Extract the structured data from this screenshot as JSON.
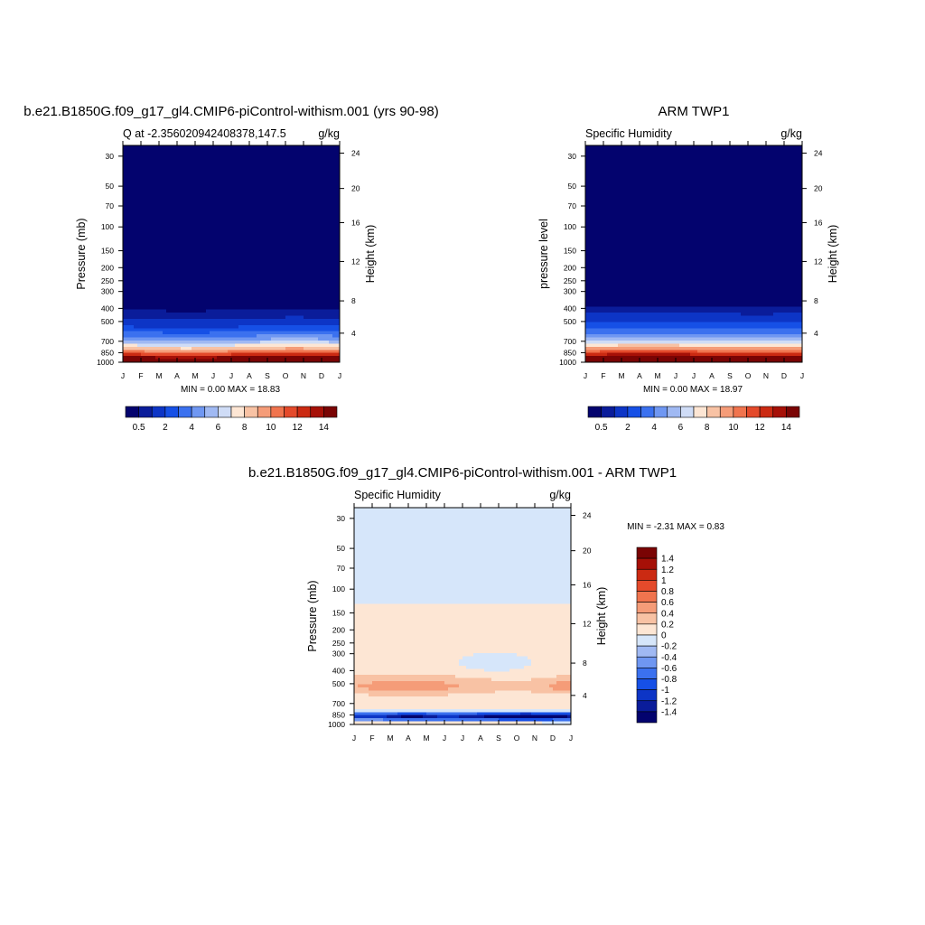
{
  "chart_data": [
    {
      "type": "heatmap",
      "title": "b.e21.B1850G.f09_g17_gl4.CMIP6-piControl-withism.001 (yrs 90-98)",
      "left_label": "Q at -2.356020942408378,147.5",
      "right_label": "g/kg",
      "ylabel": "Pressure (mb)",
      "ylabel_right": "Height (km)",
      "x": [
        "J",
        "F",
        "M",
        "A",
        "M",
        "J",
        "J",
        "A",
        "S",
        "O",
        "N",
        "D",
        "J"
      ],
      "y_ticks": [
        "30",
        "50",
        "70",
        "100",
        "150",
        "200",
        "250",
        "300",
        "400",
        "500",
        "700",
        "850",
        "1000"
      ],
      "y_ticks_right": [
        "24",
        "20",
        "16",
        "12",
        "8",
        "4"
      ],
      "ylim": [
        1000,
        25
      ],
      "minmax_text": "MIN =   0.00 MAX =  18.83",
      "colorbar_labels": [
        "0.5",
        "2",
        "4",
        "6",
        "8",
        "10",
        "12",
        "14"
      ],
      "contour_levels": [
        0.5,
        1,
        2,
        3,
        4,
        5,
        6,
        7,
        8,
        9,
        10,
        11,
        12,
        13,
        14,
        15
      ]
    },
    {
      "type": "heatmap",
      "title": "ARM TWP1",
      "left_label": "Specific Humidity",
      "right_label": "g/kg",
      "ylabel": "pressure level",
      "ylabel_right": "Height (km)",
      "x": [
        "J",
        "F",
        "M",
        "A",
        "M",
        "J",
        "J",
        "A",
        "S",
        "O",
        "N",
        "D",
        "J"
      ],
      "y_ticks": [
        "30",
        "50",
        "70",
        "100",
        "150",
        "200",
        "250",
        "300",
        "400",
        "500",
        "700",
        "850",
        "1000"
      ],
      "y_ticks_right": [
        "24",
        "20",
        "16",
        "12",
        "8",
        "4"
      ],
      "ylim": [
        1000,
        25
      ],
      "minmax_text": "MIN =   0.00 MAX =  18.97",
      "colorbar_labels": [
        "0.5",
        "2",
        "4",
        "6",
        "8",
        "10",
        "12",
        "14"
      ],
      "contour_levels": [
        0.5,
        1,
        2,
        3,
        4,
        5,
        6,
        7,
        8,
        9,
        10,
        11,
        12,
        13,
        14,
        15
      ]
    },
    {
      "type": "heatmap",
      "title": "b.e21.B1850G.f09_g17_gl4.CMIP6-piControl-withism.001 - ARM TWP1",
      "left_label": "Specific Humidity",
      "right_label": "g/kg",
      "ylabel": "Pressure (mb)",
      "ylabel_right": "Height (km)",
      "x": [
        "J",
        "F",
        "M",
        "A",
        "M",
        "J",
        "J",
        "A",
        "S",
        "O",
        "N",
        "D",
        "J"
      ],
      "y_ticks": [
        "30",
        "50",
        "70",
        "100",
        "150",
        "200",
        "250",
        "300",
        "400",
        "500",
        "700",
        "850",
        "1000"
      ],
      "y_ticks_right": [
        "24",
        "20",
        "16",
        "12",
        "8",
        "4"
      ],
      "ylim": [
        1000,
        25
      ],
      "minmax_text": "MIN =  -2.31 MAX =   0.83",
      "colorbar_labels": [
        "1.4",
        "1.2",
        "1",
        "0.8",
        "0.6",
        "0.4",
        "0.2",
        "0",
        "-0.2",
        "-0.4",
        "-0.6",
        "-0.8",
        "-1",
        "-1.2",
        "-1.4"
      ],
      "contour_levels": [
        -1.4,
        -1.2,
        -1,
        -0.8,
        -0.6,
        -0.4,
        -0.2,
        0,
        0.2,
        0.4,
        0.6,
        0.8,
        1,
        1.2,
        1.4
      ]
    }
  ],
  "colors": {
    "seq": [
      "#03036e",
      "#0a1c9a",
      "#0d35c6",
      "#1650e6",
      "#3b71ef",
      "#6f97f2",
      "#a0b9f3",
      "#cfdcf6",
      "#fde6d4",
      "#f8c2a4",
      "#f59c78",
      "#f0744e",
      "#e44a2b",
      "#cb2a12",
      "#a61007",
      "#7a0404"
    ],
    "div": [
      "#7a0404",
      "#a61007",
      "#cb2a12",
      "#e44a2b",
      "#f0744e",
      "#f59c78",
      "#f8c2a4",
      "#fde6d4",
      "#d6e6fa",
      "#a0b9f3",
      "#6f97f2",
      "#3b71ef",
      "#1650e6",
      "#0d35c6",
      "#0a1c9a",
      "#03036e"
    ]
  }
}
